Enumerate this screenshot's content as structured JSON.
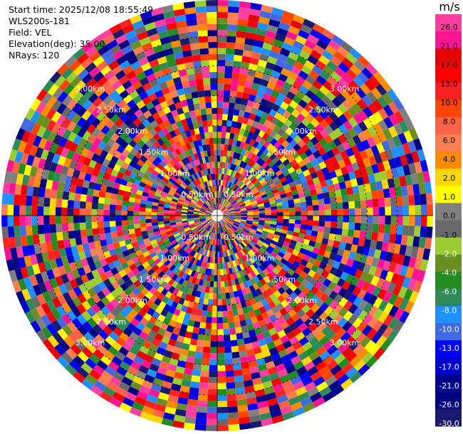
{
  "header": {
    "start_time": "Start time: 2025/12/08 18:55:49",
    "site": "WLS200s-181",
    "field": "Field: VEL",
    "elevation": "Elevation(deg): 35.00",
    "nrays": "NRays: 120"
  },
  "chart_data": {
    "type": "heatmap",
    "subtype": "polar-ppi",
    "nrays": 120,
    "range_rings_km": [
      0.5,
      1.0,
      1.5,
      2.0,
      2.5,
      3.0
    ],
    "ring_labels": [
      "0.50km",
      "1.00km",
      "1.50km",
      "2.00km",
      "2.50km",
      "3.00km"
    ],
    "grid": true,
    "colorbar": {
      "unit": "m/s",
      "ticks": [
        "26.0",
        "21.0",
        "17.0",
        "13.0",
        "10.0",
        "8.0",
        "6.0",
        "4.0",
        "2.0",
        "1.0",
        "0.0",
        "-1.0",
        "-2.0",
        "-4.0",
        "-6.0",
        "-8.0",
        "-10.0",
        "-13.0",
        "-17.0",
        "-21.0",
        "-26.0",
        "-30.0"
      ],
      "colors": [
        "#ff3fa0",
        "#ff1493",
        "#e60000",
        "#ff0000",
        "#ff2020",
        "#ff4500",
        "#ff6347",
        "#ff7f50",
        "#ff8c00",
        "#ffd700",
        "#ffff00",
        "#808080",
        "#696969",
        "#9acd32",
        "#6b8e23",
        "#228b22",
        "#2e8b57",
        "#1e90ff",
        "#4169e1",
        "#0000ff",
        "#0000cd",
        "#00008b",
        "#000080",
        "#191970"
      ]
    }
  }
}
